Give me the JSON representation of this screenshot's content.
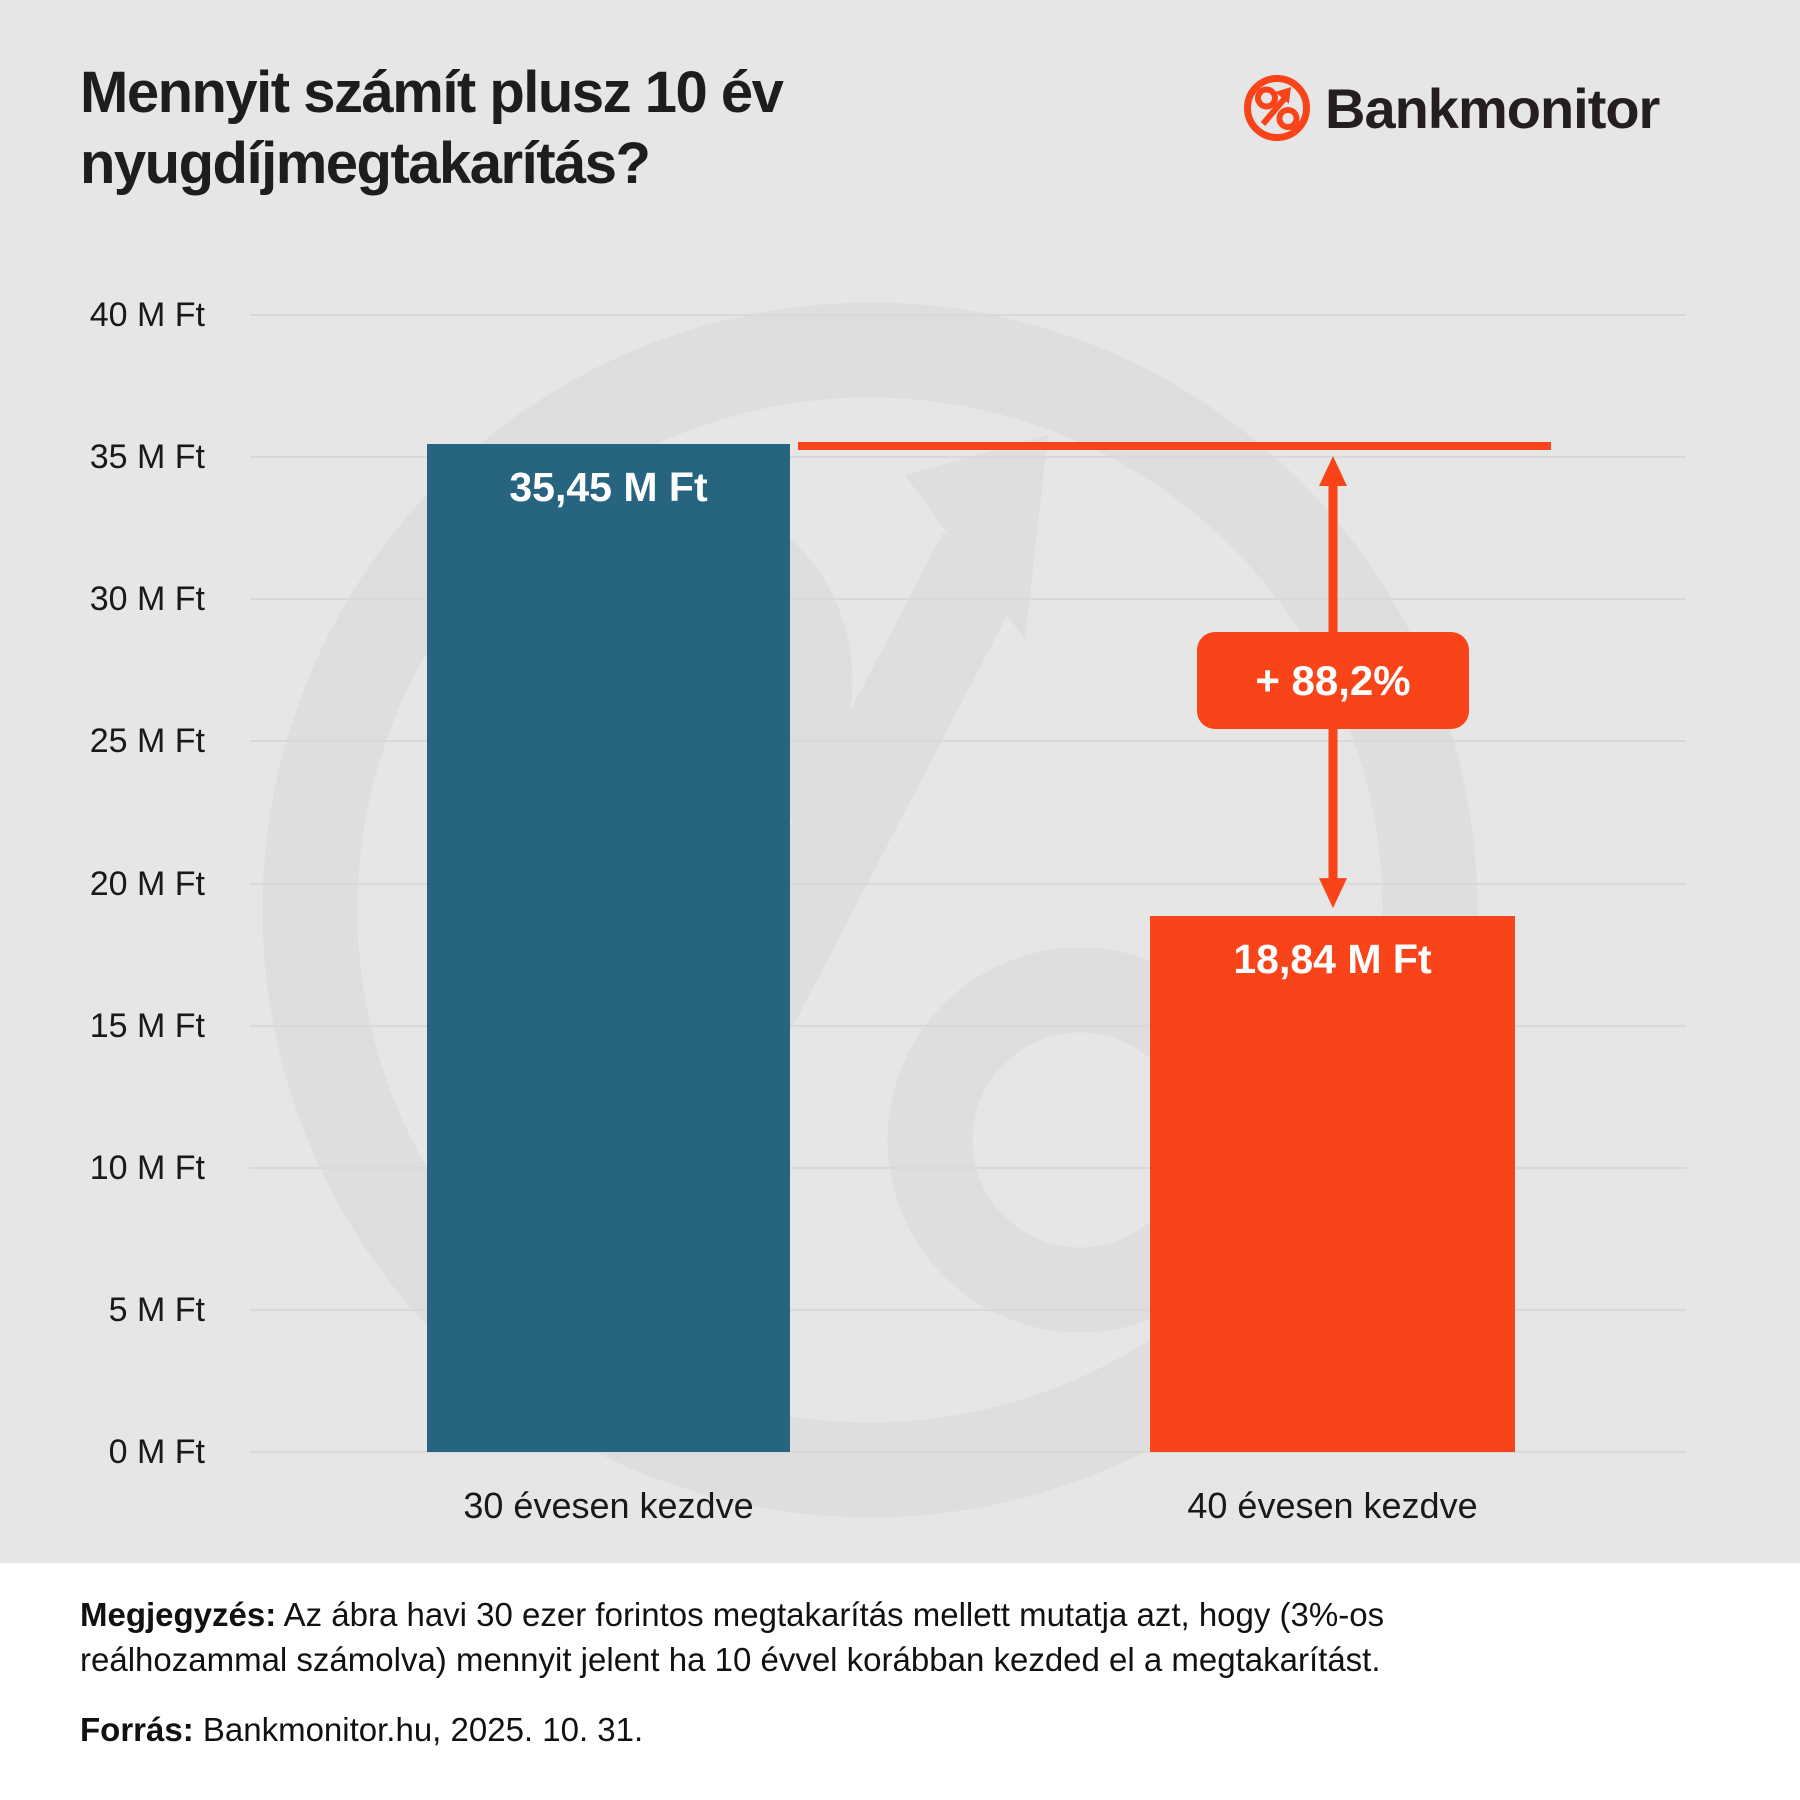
{
  "header": {
    "title_line1": "Mennyit számít plusz 10 év",
    "title_line2": "nyugdíjmegtakarítás?",
    "brand": "Bankmonitor"
  },
  "chart_data": {
    "type": "bar",
    "title": "Mennyit számít plusz 10 év nyugdíjmegtakarítás?",
    "categories": [
      "30 évesen kezdve",
      "40 évesen kezdve"
    ],
    "values": [
      35.45,
      18.84
    ],
    "value_labels": [
      "35,45 M Ft",
      "18,84 M Ft"
    ],
    "bar_colors": [
      "#266480",
      "#f9441a"
    ],
    "xlabel": "",
    "ylabel": "",
    "ylim": [
      0,
      40
    ],
    "ytick_step": 5,
    "ytick_labels": [
      "0 M Ft",
      "5 M Ft",
      "10 M Ft",
      "15 M Ft",
      "20 M Ft",
      "25 M Ft",
      "30 M Ft",
      "35 M Ft",
      "40 M Ft"
    ],
    "grid": true,
    "legend": false,
    "annotation": {
      "label": "+ 88,2%",
      "from_value": 35.45,
      "to_value": 18.84
    }
  },
  "footer": {
    "note_label": "Megjegyzés:",
    "note_text": " Az ábra havi 30 ezer forintos megtakarítás mellett mutatja azt, hogy (3%-os reálhozammal számolva) mennyit jelent ha 10 évvel korábban kezded el a megtakarítást.",
    "source_label": "Forrás:",
    "source_text": " Bankmonitor.hu, 2025. 10. 31."
  },
  "colors": {
    "accent_orange": "#f9441a",
    "bar_blue": "#266480",
    "background": "#e6e6e6",
    "watermark": "#dedede",
    "gridline": "#d9d9d9",
    "text_dark": "#1d1d1d"
  }
}
